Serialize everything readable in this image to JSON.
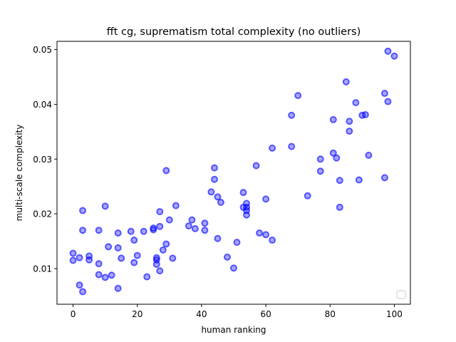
{
  "colors": {
    "point": "#0000ff",
    "axis": "#000000"
  },
  "chart_data": {
    "type": "scatter",
    "title": "fft cg, suprematism total complexity (no outliers)",
    "xlabel": "human ranking",
    "ylabel": "multi-scale complexity",
    "xlim": [
      -5,
      105
    ],
    "ylim": [
      0.0035,
      0.0515
    ],
    "xticks": [
      0,
      20,
      40,
      60,
      80,
      100
    ],
    "yticks": [
      0.01,
      0.02,
      0.03,
      0.04,
      0.05
    ],
    "xtick_labels": [
      "0",
      "20",
      "40",
      "60",
      "80",
      "100"
    ],
    "ytick_labels": [
      "0.01",
      "0.02",
      "0.03",
      "0.04",
      "0.05"
    ],
    "grid": false,
    "legend": "lower-right (empty)",
    "points": [
      {
        "x": 0,
        "y": 0.0115
      },
      {
        "x": 0,
        "y": 0.0128
      },
      {
        "x": 2,
        "y": 0.012
      },
      {
        "x": 2,
        "y": 0.007
      },
      {
        "x": 3,
        "y": 0.0058
      },
      {
        "x": 3,
        "y": 0.017
      },
      {
        "x": 3,
        "y": 0.0206
      },
      {
        "x": 5,
        "y": 0.0116
      },
      {
        "x": 5,
        "y": 0.0123
      },
      {
        "x": 8,
        "y": 0.017
      },
      {
        "x": 8,
        "y": 0.0109
      },
      {
        "x": 8,
        "y": 0.0089
      },
      {
        "x": 10,
        "y": 0.0084
      },
      {
        "x": 10,
        "y": 0.0214
      },
      {
        "x": 11,
        "y": 0.014
      },
      {
        "x": 12,
        "y": 0.0088
      },
      {
        "x": 14,
        "y": 0.0064
      },
      {
        "x": 14,
        "y": 0.0138
      },
      {
        "x": 14,
        "y": 0.0165
      },
      {
        "x": 15,
        "y": 0.0119
      },
      {
        "x": 18,
        "y": 0.0168
      },
      {
        "x": 19,
        "y": 0.0111
      },
      {
        "x": 19,
        "y": 0.0152
      },
      {
        "x": 20,
        "y": 0.0124
      },
      {
        "x": 22,
        "y": 0.0168
      },
      {
        "x": 23,
        "y": 0.0085
      },
      {
        "x": 25,
        "y": 0.0171
      },
      {
        "x": 25,
        "y": 0.0174
      },
      {
        "x": 26,
        "y": 0.012
      },
      {
        "x": 26,
        "y": 0.0116
      },
      {
        "x": 26,
        "y": 0.0108
      },
      {
        "x": 27,
        "y": 0.0096
      },
      {
        "x": 27,
        "y": 0.0177
      },
      {
        "x": 27,
        "y": 0.0204
      },
      {
        "x": 28,
        "y": 0.0134
      },
      {
        "x": 29,
        "y": 0.0145
      },
      {
        "x": 29,
        "y": 0.0279
      },
      {
        "x": 30,
        "y": 0.0189
      },
      {
        "x": 31,
        "y": 0.0119
      },
      {
        "x": 32,
        "y": 0.0215
      },
      {
        "x": 36,
        "y": 0.0178
      },
      {
        "x": 37,
        "y": 0.0189
      },
      {
        "x": 38,
        "y": 0.0173
      },
      {
        "x": 41,
        "y": 0.0183
      },
      {
        "x": 41,
        "y": 0.017
      },
      {
        "x": 43,
        "y": 0.024
      },
      {
        "x": 44,
        "y": 0.0284
      },
      {
        "x": 44,
        "y": 0.0263
      },
      {
        "x": 45,
        "y": 0.0231
      },
      {
        "x": 45,
        "y": 0.0155
      },
      {
        "x": 46,
        "y": 0.0221
      },
      {
        "x": 48,
        "y": 0.0121
      },
      {
        "x": 50,
        "y": 0.0101
      },
      {
        "x": 51,
        "y": 0.0148
      },
      {
        "x": 53,
        "y": 0.0239
      },
      {
        "x": 53,
        "y": 0.0212
      },
      {
        "x": 54,
        "y": 0.0219
      },
      {
        "x": 54,
        "y": 0.0206
      },
      {
        "x": 54,
        "y": 0.0198
      },
      {
        "x": 54,
        "y": 0.0212
      },
      {
        "x": 57,
        "y": 0.0288
      },
      {
        "x": 58,
        "y": 0.0165
      },
      {
        "x": 60,
        "y": 0.0162
      },
      {
        "x": 60,
        "y": 0.0227
      },
      {
        "x": 62,
        "y": 0.0152
      },
      {
        "x": 62,
        "y": 0.032
      },
      {
        "x": 68,
        "y": 0.038
      },
      {
        "x": 68,
        "y": 0.0323
      },
      {
        "x": 70,
        "y": 0.0416
      },
      {
        "x": 73,
        "y": 0.0233
      },
      {
        "x": 77,
        "y": 0.03
      },
      {
        "x": 77,
        "y": 0.0278
      },
      {
        "x": 81,
        "y": 0.0372
      },
      {
        "x": 81,
        "y": 0.0311
      },
      {
        "x": 82,
        "y": 0.0302
      },
      {
        "x": 83,
        "y": 0.0261
      },
      {
        "x": 83,
        "y": 0.0212
      },
      {
        "x": 85,
        "y": 0.0441
      },
      {
        "x": 86,
        "y": 0.0369
      },
      {
        "x": 86,
        "y": 0.0351
      },
      {
        "x": 88,
        "y": 0.0403
      },
      {
        "x": 89,
        "y": 0.0262
      },
      {
        "x": 90,
        "y": 0.038
      },
      {
        "x": 91,
        "y": 0.0381
      },
      {
        "x": 92,
        "y": 0.0307
      },
      {
        "x": 97,
        "y": 0.042
      },
      {
        "x": 97,
        "y": 0.0266
      },
      {
        "x": 98,
        "y": 0.0405
      },
      {
        "x": 98,
        "y": 0.0497
      },
      {
        "x": 100,
        "y": 0.0488
      }
    ]
  }
}
